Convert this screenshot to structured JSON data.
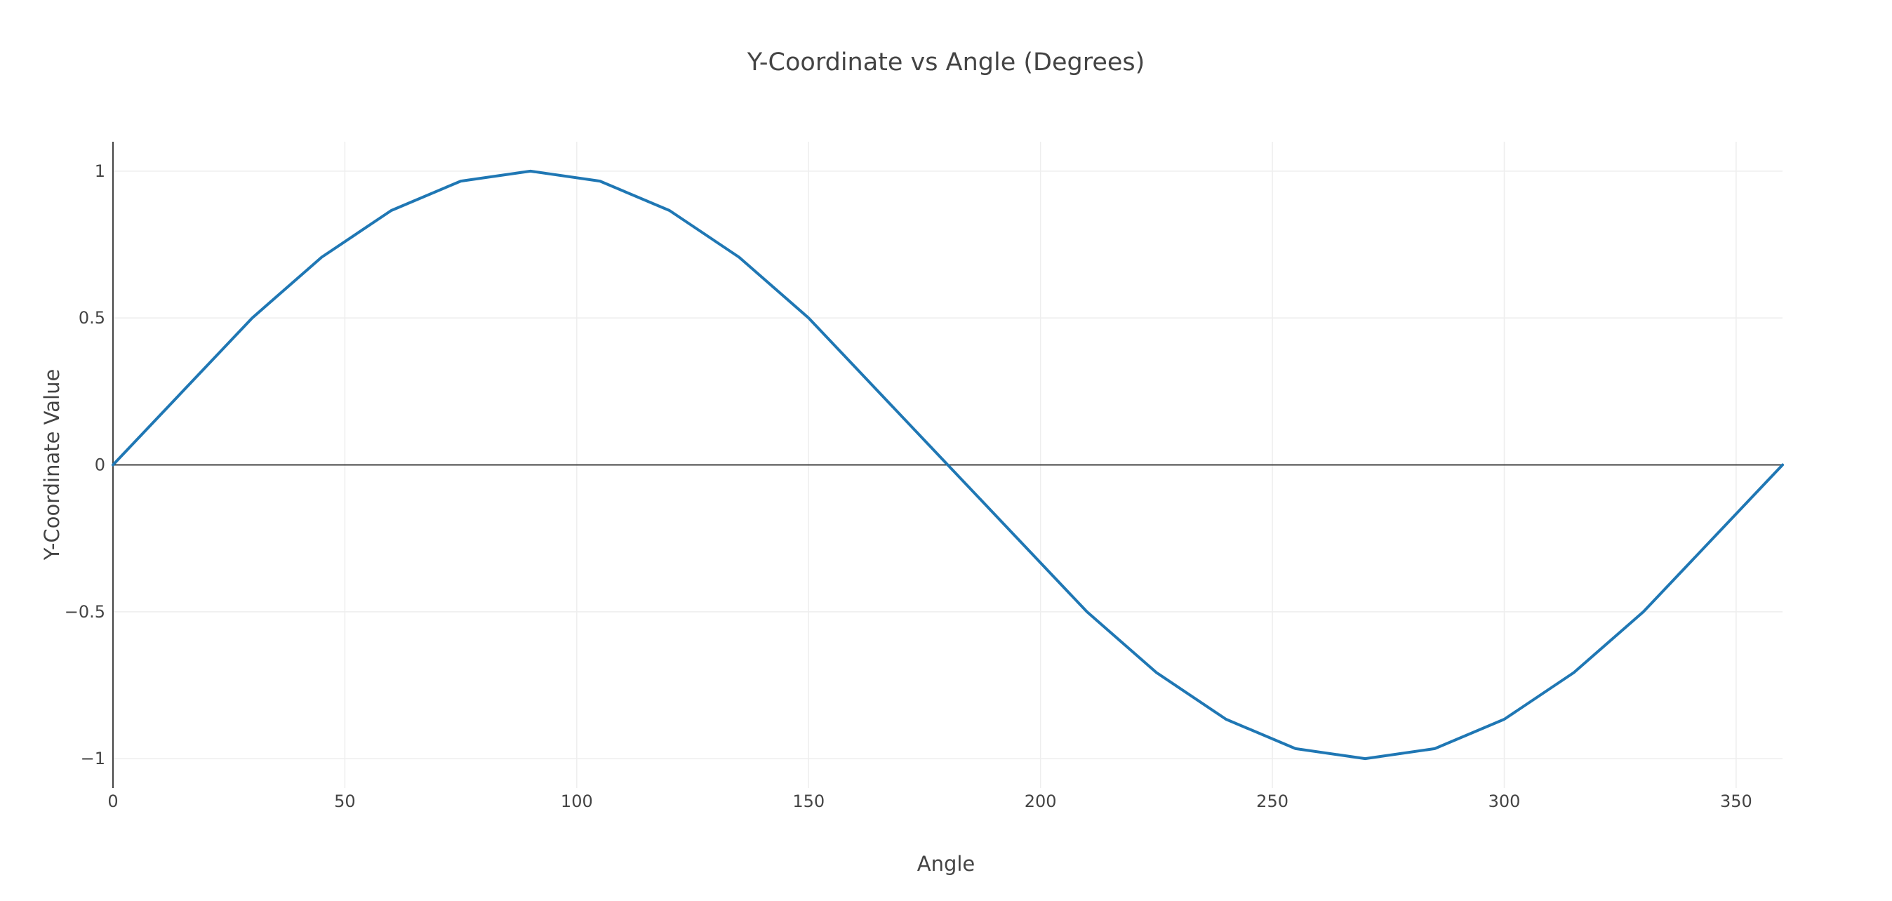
{
  "chart_data": {
    "type": "line",
    "title": "Y-Coordinate vs Angle (Degrees)",
    "xlabel": "Angle",
    "ylabel": "Y-Coordinate Value",
    "xlim": [
      0,
      360
    ],
    "ylim": [
      -1.1,
      1.1
    ],
    "xticks": [
      0,
      50,
      100,
      150,
      200,
      250,
      300,
      350
    ],
    "xtick_labels": [
      "0",
      "50",
      "100",
      "150",
      "200",
      "250",
      "300",
      "350"
    ],
    "yticks": [
      1,
      0.5,
      0,
      -0.5,
      -1
    ],
    "ytick_labels": [
      "1",
      "0.5",
      "0",
      "−0.5",
      "−1"
    ],
    "grid": true,
    "series": [
      {
        "color": "#1f77b4",
        "x": [
          0,
          30,
          45,
          60,
          75,
          90,
          105,
          120,
          135,
          150,
          180,
          210,
          225,
          240,
          255,
          270,
          285,
          300,
          315,
          330,
          360
        ],
        "y": [
          0,
          0.5,
          0.7071,
          0.866,
          0.9659,
          1,
          0.9659,
          0.866,
          0.7071,
          0.5,
          0,
          -0.5,
          -0.7071,
          -0.866,
          -0.9659,
          -1,
          -0.9659,
          -0.866,
          -0.7071,
          -0.5,
          0
        ]
      }
    ]
  }
}
